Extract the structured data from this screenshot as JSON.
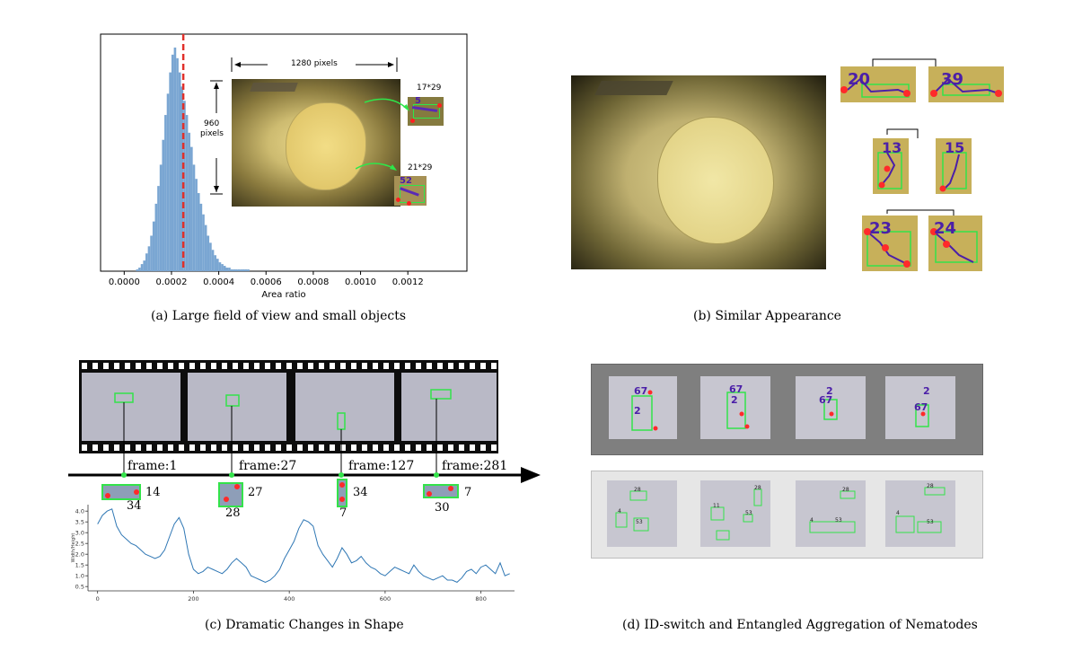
{
  "panel_a": {
    "caption": "(a) Large field of view and small objects",
    "width_label": "1280 pixels",
    "height_label_1": "960",
    "height_label_2": "pixels",
    "crop1_label": "17*29",
    "crop2_label": "21*29",
    "crop1_id": "5",
    "crop2_id": "52"
  },
  "panel_b": {
    "caption": "(b) Similar Appearance",
    "pairs": [
      [
        "20",
        "39"
      ],
      [
        "13",
        "15"
      ],
      [
        "23",
        "24"
      ]
    ]
  },
  "panel_c": {
    "caption": "(c) Dramatic Changes in Shape",
    "frames": [
      "frame:1",
      "frame:27",
      "frame:127",
      "frame:281"
    ],
    "crop_ids_right": [
      "14",
      "27",
      "34",
      "7"
    ],
    "crop_ids_below": [
      "34",
      "28",
      "7",
      "30"
    ]
  },
  "panel_d": {
    "caption": "(d) ID-switch and Entangled Aggregation of Nematodes",
    "top_labels": [
      [
        "67",
        "2"
      ],
      [
        "67",
        "2"
      ],
      [
        "2",
        "67"
      ],
      [
        "2",
        "67"
      ]
    ],
    "bottom_labels": [
      [
        "28",
        "4",
        "53"
      ],
      [
        "28",
        "11",
        "53"
      ],
      [
        "28",
        "4",
        "53"
      ],
      [
        "28",
        "4",
        "53"
      ]
    ]
  },
  "chart_data": [
    {
      "type": "bar",
      "title": "",
      "xlabel": "Area ratio",
      "ylabel": "",
      "xlim": [
        -0.0001,
        0.00145
      ],
      "xticks": [
        0.0,
        0.0002,
        0.0004,
        0.0006,
        0.0008,
        0.001,
        0.0012
      ],
      "xtick_labels": [
        "0.0000",
        "0.0002",
        "0.0004",
        "0.0006",
        "0.0008",
        "0.0010",
        "0.0012"
      ],
      "bin_start": 5e-05,
      "bin_width": 1e-05,
      "values": [
        1,
        2,
        4,
        6,
        10,
        14,
        20,
        28,
        38,
        48,
        60,
        74,
        88,
        100,
        112,
        122,
        126,
        120,
        112,
        104,
        96,
        88,
        78,
        70,
        60,
        52,
        44,
        38,
        32,
        26,
        20,
        16,
        12,
        9,
        7,
        5,
        4,
        3,
        2,
        2,
        1,
        1,
        1,
        1,
        1,
        1,
        1,
        1
      ],
      "mean_line_x": 0.00025,
      "mean_line_color": "#e0302a",
      "bar_color": "#7aa6d2"
    },
    {
      "type": "line",
      "title": "",
      "xlabel": "",
      "ylabel": "Width/Height",
      "xlim": [
        -20,
        870
      ],
      "ylim": [
        0.3,
        4.3
      ],
      "xticks": [
        0,
        200,
        400,
        600,
        800
      ],
      "yticks": [
        0.5,
        1.0,
        1.5,
        2.0,
        2.5,
        3.0,
        3.5,
        4.0
      ],
      "ytick_labels": [
        "0.5",
        "1.0",
        "1.5",
        "2.0",
        "2.5",
        "3.0",
        "3.5",
        "4.0"
      ],
      "series": [
        {
          "name": "",
          "color": "#2f77b4",
          "x": [
            0,
            10,
            20,
            30,
            40,
            50,
            60,
            70,
            80,
            90,
            100,
            110,
            120,
            130,
            140,
            150,
            160,
            170,
            180,
            190,
            200,
            210,
            220,
            230,
            240,
            250,
            260,
            270,
            280,
            290,
            300,
            310,
            320,
            330,
            340,
            350,
            360,
            370,
            380,
            390,
            400,
            410,
            420,
            430,
            440,
            450,
            460,
            470,
            480,
            490,
            500,
            510,
            520,
            530,
            540,
            550,
            560,
            570,
            580,
            590,
            600,
            610,
            620,
            630,
            640,
            650,
            660,
            670,
            680,
            690,
            700,
            710,
            720,
            730,
            740,
            750,
            760,
            770,
            780,
            790,
            800,
            810,
            820,
            830,
            840,
            850,
            860
          ],
          "y": [
            3.4,
            3.8,
            4.0,
            4.1,
            3.3,
            2.9,
            2.7,
            2.5,
            2.4,
            2.2,
            2.0,
            1.9,
            1.8,
            1.9,
            2.2,
            2.8,
            3.4,
            3.7,
            3.2,
            2.0,
            1.3,
            1.1,
            1.2,
            1.4,
            1.3,
            1.2,
            1.1,
            1.3,
            1.6,
            1.8,
            1.6,
            1.4,
            1.0,
            0.9,
            0.8,
            0.7,
            0.8,
            1.0,
            1.3,
            1.8,
            2.2,
            2.6,
            3.2,
            3.6,
            3.5,
            3.3,
            2.4,
            2.0,
            1.7,
            1.4,
            1.8,
            2.3,
            2.0,
            1.6,
            1.7,
            1.9,
            1.6,
            1.4,
            1.3,
            1.1,
            1.0,
            1.2,
            1.4,
            1.3,
            1.2,
            1.1,
            1.5,
            1.2,
            1.0,
            0.9,
            0.8,
            0.9,
            1.0,
            0.8,
            0.8,
            0.7,
            0.9,
            1.2,
            1.3,
            1.1,
            1.4,
            1.5,
            1.3,
            1.1,
            1.6,
            1.0,
            1.1
          ]
        }
      ]
    }
  ]
}
